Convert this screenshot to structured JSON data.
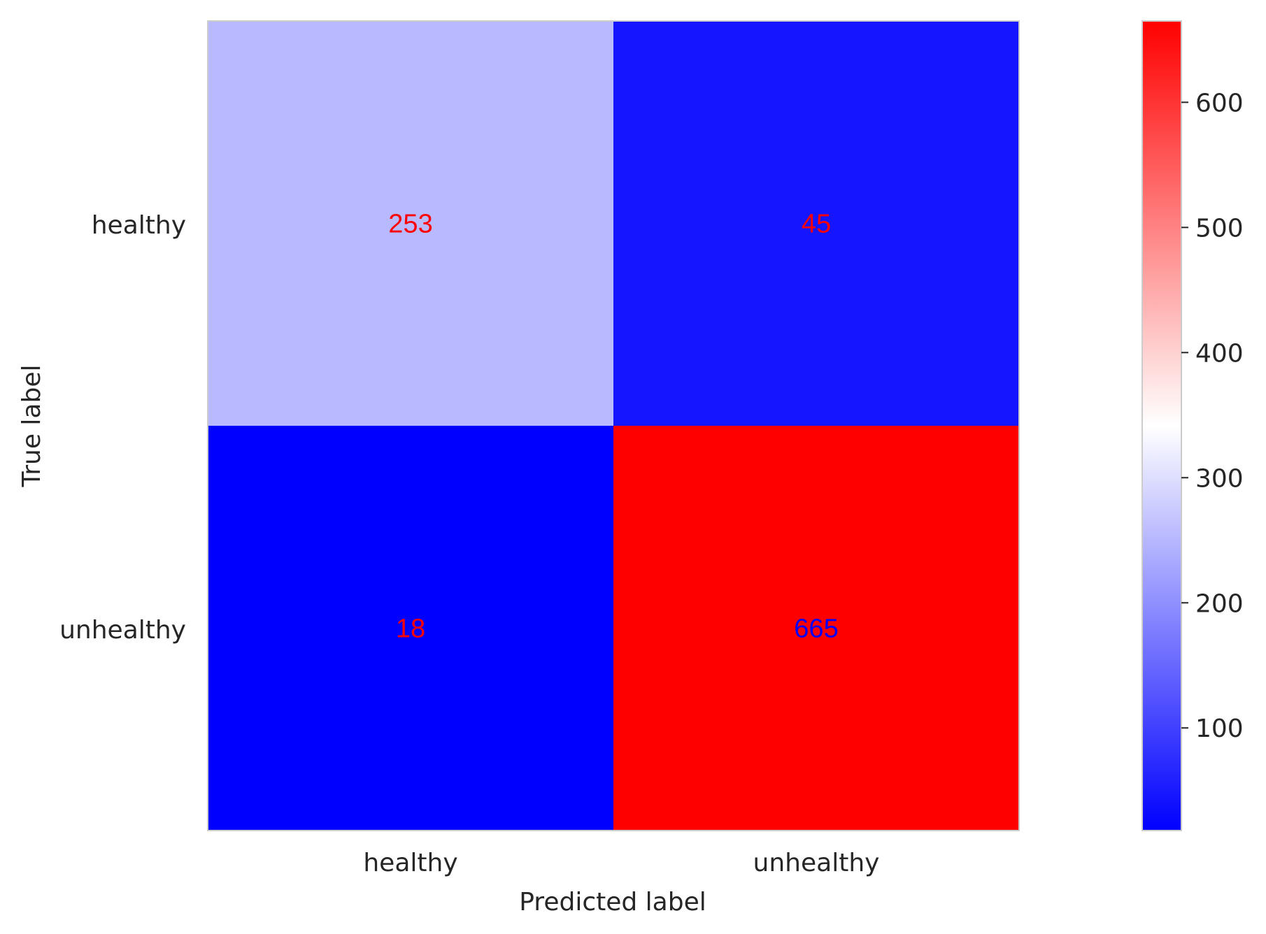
{
  "chart_data": {
    "type": "heatmap",
    "title": "",
    "xlabel": "Predicted label",
    "ylabel": "True label",
    "x_categories": [
      "healthy",
      "unhealthy"
    ],
    "y_categories": [
      "healthy",
      "unhealthy"
    ],
    "matrix": [
      [
        253,
        45
      ],
      [
        18,
        665
      ]
    ],
    "cell_label_colors": [
      [
        "#ff0000",
        "#ff0000"
      ],
      [
        "#ff0000",
        "#0000ff"
      ]
    ],
    "colorbar": {
      "range": [
        18,
        665
      ],
      "ticks": [
        100,
        200,
        300,
        400,
        500,
        600
      ],
      "colormap": [
        "#0000ff",
        "#ffffff",
        "#ff0000"
      ]
    },
    "grid": false
  }
}
